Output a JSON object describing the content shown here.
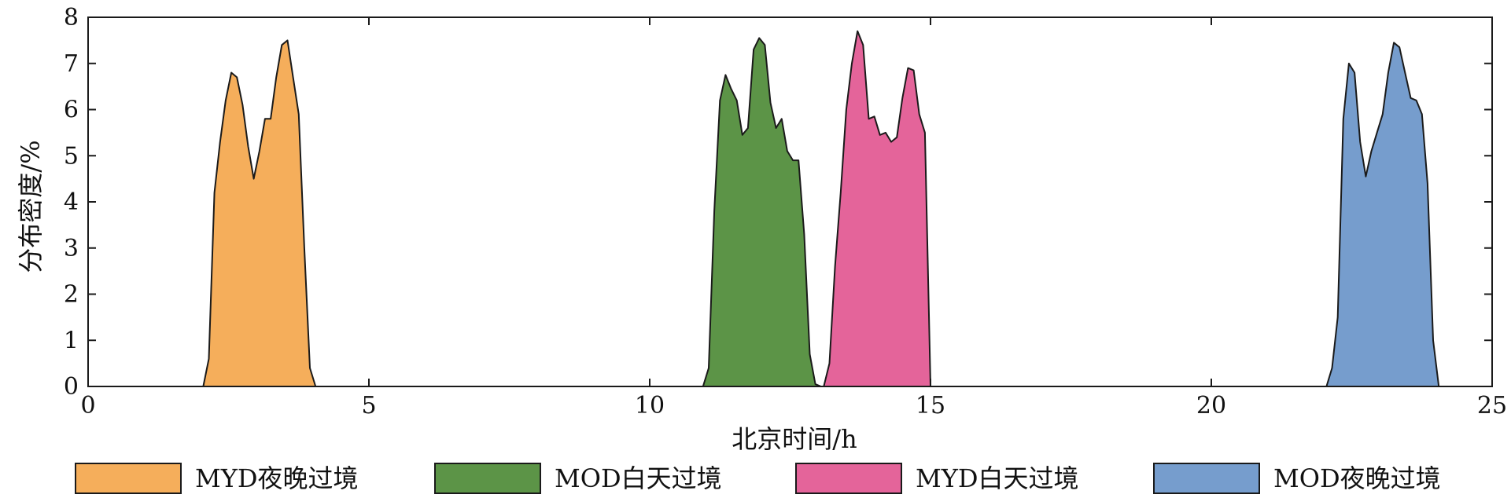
{
  "chart_data": {
    "type": "area",
    "title": "",
    "xlabel": "北京时间/h",
    "ylabel": "分布密度/%",
    "xlim": [
      0,
      25
    ],
    "ylim": [
      0,
      8
    ],
    "xticks": [
      0,
      5,
      10,
      15,
      20,
      25
    ],
    "yticks": [
      0,
      1,
      2,
      3,
      4,
      5,
      6,
      7,
      8
    ],
    "grid": false,
    "legend_position": "bottom",
    "series": [
      {
        "name": "MYD夜晚过境",
        "color": "#F5AE5B",
        "x": [
          2.05,
          2.15,
          2.25,
          2.35,
          2.45,
          2.55,
          2.65,
          2.75,
          2.85,
          2.95,
          3.05,
          3.15,
          3.25,
          3.35,
          3.45,
          3.55,
          3.65,
          3.75,
          3.85,
          3.95,
          4.05
        ],
        "y": [
          0,
          0.6,
          4.2,
          5.3,
          6.2,
          6.8,
          6.7,
          6.1,
          5.2,
          4.5,
          5.1,
          5.8,
          5.8,
          6.7,
          7.4,
          7.5,
          6.7,
          5.9,
          3.0,
          0.4,
          0
        ]
      },
      {
        "name": "MOD白天过境",
        "color": "#5C9447",
        "x": [
          10.95,
          11.05,
          11.15,
          11.25,
          11.35,
          11.45,
          11.55,
          11.65,
          11.75,
          11.85,
          11.95,
          12.05,
          12.15,
          12.25,
          12.35,
          12.45,
          12.55,
          12.65,
          12.75,
          12.85,
          12.95,
          13.05
        ],
        "y": [
          0,
          0.4,
          3.8,
          6.2,
          6.75,
          6.45,
          6.2,
          5.45,
          5.6,
          7.3,
          7.55,
          7.4,
          6.15,
          5.6,
          5.8,
          5.1,
          4.9,
          4.9,
          3.3,
          0.7,
          0.05,
          0
        ]
      },
      {
        "name": "MYD白天过境",
        "color": "#E4649A",
        "x": [
          13.1,
          13.2,
          13.3,
          13.4,
          13.5,
          13.6,
          13.7,
          13.8,
          13.9,
          14.0,
          14.1,
          14.2,
          14.3,
          14.4,
          14.5,
          14.6,
          14.7,
          14.8,
          14.9,
          15.0
        ],
        "y": [
          0,
          0.5,
          2.6,
          4.2,
          6.0,
          7.0,
          7.7,
          7.4,
          5.8,
          5.85,
          5.45,
          5.5,
          5.3,
          5.4,
          6.25,
          6.9,
          6.85,
          5.9,
          5.5,
          0
        ]
      },
      {
        "name": "MOD夜晚过境",
        "color": "#769DCD",
        "x": [
          22.05,
          22.15,
          22.25,
          22.35,
          22.45,
          22.55,
          22.65,
          22.75,
          22.85,
          22.95,
          23.05,
          23.15,
          23.25,
          23.35,
          23.45,
          23.55,
          23.65,
          23.75,
          23.85,
          23.95,
          24.05
        ],
        "y": [
          0,
          0.4,
          1.5,
          5.8,
          7.0,
          6.8,
          5.3,
          4.55,
          5.1,
          5.5,
          5.9,
          6.8,
          7.45,
          7.35,
          6.8,
          6.25,
          6.2,
          5.9,
          4.4,
          1.0,
          0
        ]
      }
    ]
  }
}
